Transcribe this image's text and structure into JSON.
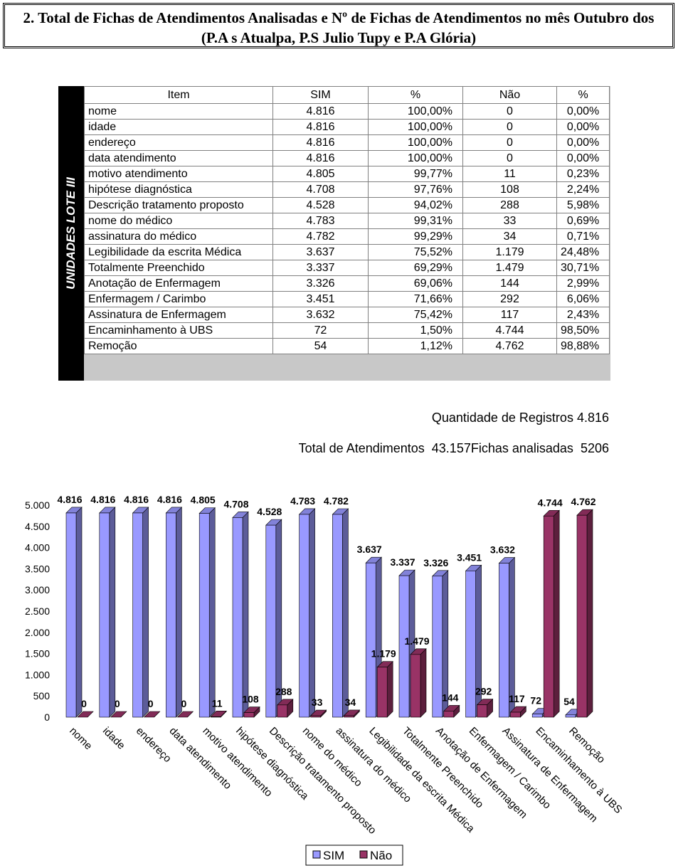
{
  "header": {
    "title": "2. Total de Fichas de Atendimentos Analisadas e Nº de Fichas de Atendimentos no mês Outubro dos (P.A s Atualpa, P.S Julio Tupy e P.A Glória)"
  },
  "side_label": "UNIDADES LOTE III",
  "table": {
    "columns": [
      "Item",
      "SIM",
      "%",
      "Não",
      "%"
    ],
    "rows": [
      [
        "nome",
        "4.816",
        "100,00%",
        "0",
        "0,00%"
      ],
      [
        "idade",
        "4.816",
        "100,00%",
        "0",
        "0,00%"
      ],
      [
        "endereço",
        "4.816",
        "100,00%",
        "0",
        "0,00%"
      ],
      [
        "data atendimento",
        "4.816",
        "100,00%",
        "0",
        "0,00%"
      ],
      [
        "motivo atendimento",
        "4.805",
        "99,77%",
        "11",
        "0,23%"
      ],
      [
        "hipótese diagnóstica",
        "4.708",
        "97,76%",
        "108",
        "2,24%"
      ],
      [
        "Descrição tratamento proposto",
        "4.528",
        "94,02%",
        "288",
        "5,98%"
      ],
      [
        "nome do médico",
        "4.783",
        "99,31%",
        "33",
        "0,69%"
      ],
      [
        "assinatura do médico",
        "4.782",
        "99,29%",
        "34",
        "0,71%"
      ],
      [
        "Legibilidade da escrita Médica",
        "3.637",
        "75,52%",
        "1.179",
        "24,48%"
      ],
      [
        "Totalmente Preenchido",
        "3.337",
        "69,29%",
        "1.479",
        "30,71%"
      ],
      [
        "Anotação de Enfermagem",
        "3.326",
        "69,06%",
        "144",
        "2,99%"
      ],
      [
        "Enfermagem / Carimbo",
        "3.451",
        "71,66%",
        "292",
        "6,06%"
      ],
      [
        "Assinatura de Enfermagem",
        "3.632",
        "75,42%",
        "117",
        "2,43%"
      ],
      [
        "Encaminhamento à UBS",
        "72",
        "1,50%",
        "4.744",
        "98,50%"
      ],
      [
        "Remoção",
        "54",
        "1,12%",
        "4.762",
        "98,88%"
      ]
    ]
  },
  "summary": {
    "registros_label": "Quantidade de Registros",
    "registros": "4.816",
    "atendimentos_label": "Total de Atendimentos",
    "atendimentos": "43.157",
    "fichas_label": "Fichas analisadas",
    "fichas": "5206"
  },
  "chart_data": {
    "type": "bar",
    "categories": [
      "nome",
      "idade",
      "endereço",
      "data atendimento",
      "motivo atendimento",
      "hipótese diagnóstica",
      "Descrição tratamento proposto",
      "nome do médico",
      "assinatura do médico",
      "Legibilidade da escrita Médica",
      "Totalmente Preenchido",
      "Anotação de Enfermagem",
      "Enfermagem / Carimbo",
      "Assinatura de Enfermagem",
      "Encaminhamento à UBS",
      "Remoção"
    ],
    "series": [
      {
        "name": "SIM",
        "color": "#9999ff",
        "values": [
          4816,
          4816,
          4816,
          4816,
          4805,
          4708,
          4528,
          4783,
          4782,
          3637,
          3337,
          3326,
          3451,
          3632,
          72,
          54
        ],
        "value_labels": [
          "4.816",
          "4.816",
          "4.816",
          "4.816",
          "4.805",
          "4.708",
          "4.528",
          "4.783",
          "4.782",
          "3.637",
          "3.337",
          "3.326",
          "3.451",
          "3.632",
          "72",
          "54"
        ]
      },
      {
        "name": "Não",
        "color": "#993366",
        "values": [
          0,
          0,
          0,
          0,
          11,
          108,
          288,
          33,
          34,
          1179,
          1479,
          144,
          292,
          117,
          4744,
          4762
        ],
        "value_labels": [
          "0",
          "0",
          "0",
          "0",
          "11",
          "108",
          "288",
          "33",
          "34",
          "1.179",
          "1.479",
          "144",
          "292",
          "117",
          "4.744",
          "4.762"
        ]
      }
    ],
    "ylim": [
      0,
      5000
    ],
    "yticks": [
      0,
      500,
      {
        "value": 1000,
        "label": "1.000"
      },
      {
        "value": 1500,
        "label": "1.500"
      },
      {
        "value": 2000,
        "label": "2.000"
      },
      {
        "value": 2500,
        "label": "2.500"
      },
      {
        "value": 3000,
        "label": "3.000"
      },
      {
        "value": 3500,
        "label": "3.500"
      },
      {
        "value": 4000,
        "label": "4.000"
      },
      {
        "value": 4500,
        "label": "4.500"
      },
      {
        "value": 5000,
        "label": "5.000"
      }
    ],
    "legend": "bottom"
  }
}
